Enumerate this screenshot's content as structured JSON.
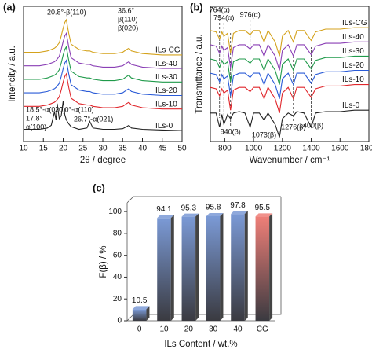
{
  "chart_data": [
    {
      "type": "line",
      "panel_label": "(a)",
      "x_label": "2θ / degree",
      "y_label": "Intencity / a.u.",
      "xlim": [
        10,
        50
      ],
      "xticks": [
        10,
        15,
        20,
        25,
        30,
        35,
        40,
        45,
        50
      ],
      "ylim": [
        0,
        10
      ],
      "x": [
        10,
        14,
        16,
        17,
        17.8,
        18.2,
        18.5,
        19,
        19.5,
        20,
        20.4,
        20.8,
        21.4,
        22,
        24,
        26,
        26.7,
        27.5,
        30,
        33,
        35,
        36,
        36.6,
        37.2,
        40,
        45,
        50
      ],
      "series": [
        {
          "name": "ILs-0",
          "color": "#222222",
          "values": [
            0.9,
            0.9,
            1.0,
            1.2,
            2.2,
            1.6,
            2.8,
            1.7,
            1.9,
            3.0,
            2.0,
            1.6,
            1.3,
            1.1,
            0.9,
            1.0,
            1.5,
            1.0,
            0.9,
            0.9,
            0.95,
            1.1,
            1.2,
            1.0,
            0.9,
            0.85,
            0.8
          ]
        },
        {
          "name": "ILs-10",
          "color": "#e0262b",
          "values": [
            2.6,
            2.6,
            2.7,
            2.8,
            2.9,
            3.0,
            3.1,
            3.3,
            3.8,
            4.4,
            4.8,
            5.0,
            4.0,
            3.2,
            2.8,
            2.7,
            2.7,
            2.6,
            2.5,
            2.5,
            2.6,
            2.8,
            2.9,
            2.7,
            2.5,
            2.4,
            2.4
          ]
        },
        {
          "name": "ILs-20",
          "color": "#2a5bd7",
          "values": [
            3.6,
            3.6,
            3.7,
            3.8,
            3.9,
            4.0,
            4.1,
            4.3,
            4.8,
            5.4,
            5.8,
            6.0,
            5.0,
            4.2,
            3.8,
            3.7,
            3.7,
            3.6,
            3.5,
            3.5,
            3.6,
            3.8,
            3.9,
            3.7,
            3.5,
            3.4,
            3.4
          ]
        },
        {
          "name": "ILs-30",
          "color": "#1f9a4a",
          "values": [
            4.6,
            4.6,
            4.7,
            4.8,
            4.9,
            5.0,
            5.1,
            5.3,
            5.8,
            6.4,
            6.8,
            7.0,
            6.0,
            5.2,
            4.8,
            4.7,
            4.7,
            4.6,
            4.5,
            4.5,
            4.6,
            4.8,
            4.9,
            4.7,
            4.5,
            4.4,
            4.4
          ]
        },
        {
          "name": "ILs-40",
          "color": "#8a3fb5",
          "values": [
            5.6,
            5.6,
            5.7,
            5.8,
            5.9,
            6.0,
            6.1,
            6.3,
            6.8,
            7.4,
            7.8,
            8.0,
            7.0,
            6.2,
            5.8,
            5.7,
            5.7,
            5.6,
            5.5,
            5.5,
            5.6,
            5.8,
            5.9,
            5.7,
            5.5,
            5.4,
            5.4
          ]
        },
        {
          "name": "ILs-CG",
          "color": "#d4a21c",
          "values": [
            6.6,
            6.6,
            6.7,
            6.8,
            6.9,
            7.0,
            7.1,
            7.3,
            7.8,
            8.4,
            8.8,
            9.0,
            8.0,
            7.2,
            6.8,
            6.7,
            6.7,
            6.6,
            6.5,
            6.5,
            6.6,
            6.8,
            6.9,
            6.7,
            6.5,
            6.4,
            6.4
          ]
        }
      ],
      "annotations": [
        {
          "text": "20.8°-β(110)"
        },
        {
          "text": "36.6°"
        },
        {
          "text": "β(110)"
        },
        {
          "text": "β(020)"
        },
        {
          "text": "18.5°-α(020)"
        },
        {
          "text": "17.8°"
        },
        {
          "text": "α(100)"
        },
        {
          "text": "20.0°-α(110)"
        },
        {
          "text": "26.7°-α(021)"
        }
      ]
    },
    {
      "type": "line",
      "panel_label": "(b)",
      "x_label": "Wavenumber / cm⁻¹",
      "y_label": "Transmittance / a.u.",
      "xlim": [
        700,
        1800
      ],
      "xticks": [
        800,
        1000,
        1200,
        1400,
        1600,
        1800
      ],
      "ylim": [
        0,
        9.5
      ],
      "x": [
        700,
        740,
        764,
        780,
        794,
        820,
        840,
        860,
        900,
        940,
        976,
        1000,
        1040,
        1073,
        1100,
        1150,
        1180,
        1200,
        1240,
        1276,
        1300,
        1350,
        1400,
        1430,
        1500,
        1600,
        1700,
        1800
      ],
      "series": [
        {
          "name": "ILs-0",
          "color": "#222222",
          "values": [
            2.0,
            2.0,
            1.0,
            1.9,
            1.2,
            1.9,
            1.6,
            2.0,
            2.1,
            2.0,
            1.0,
            2.0,
            2.0,
            1.5,
            2.0,
            1.2,
            0.3,
            1.6,
            2.0,
            1.8,
            2.1,
            2.0,
            1.0,
            2.0,
            2.1,
            2.1,
            2.2,
            2.2
          ]
        },
        {
          "name": "ILs-10",
          "color": "#e0262b",
          "values": [
            3.8,
            3.7,
            3.2,
            3.7,
            3.4,
            3.6,
            2.2,
            3.6,
            3.8,
            3.8,
            3.5,
            3.8,
            3.8,
            3.0,
            3.8,
            3.0,
            2.0,
            3.4,
            3.8,
            3.0,
            3.8,
            3.8,
            3.1,
            3.7,
            3.9,
            3.9,
            4.0,
            4.0
          ]
        },
        {
          "name": "ILs-20",
          "color": "#2a5bd7",
          "values": [
            4.8,
            4.7,
            4.2,
            4.7,
            4.4,
            4.6,
            3.2,
            4.6,
            4.8,
            4.8,
            4.5,
            4.8,
            4.8,
            4.0,
            4.8,
            4.0,
            3.0,
            4.4,
            4.8,
            4.0,
            4.8,
            4.8,
            4.1,
            4.7,
            4.9,
            4.9,
            5.0,
            5.0
          ]
        },
        {
          "name": "ILs-30",
          "color": "#1f9a4a",
          "values": [
            5.8,
            5.7,
            5.2,
            5.7,
            5.4,
            5.6,
            4.2,
            5.6,
            5.8,
            5.8,
            5.5,
            5.8,
            5.8,
            5.0,
            5.8,
            5.0,
            4.0,
            5.4,
            5.8,
            5.0,
            5.8,
            5.8,
            5.1,
            5.7,
            5.9,
            5.9,
            6.0,
            6.0
          ]
        },
        {
          "name": "ILs-40",
          "color": "#8a3fb5",
          "values": [
            6.8,
            6.7,
            6.2,
            6.7,
            6.4,
            6.6,
            5.2,
            6.6,
            6.8,
            6.8,
            6.5,
            6.8,
            6.8,
            6.0,
            6.8,
            6.0,
            5.0,
            6.4,
            6.8,
            6.0,
            6.8,
            6.8,
            6.1,
            6.7,
            6.9,
            6.9,
            7.0,
            7.0
          ]
        },
        {
          "name": "ILs-CG",
          "color": "#d4a21c",
          "values": [
            7.8,
            7.7,
            7.2,
            7.7,
            7.4,
            7.6,
            6.2,
            7.6,
            7.8,
            7.8,
            7.5,
            7.8,
            7.8,
            7.0,
            7.8,
            7.0,
            6.0,
            7.4,
            7.8,
            7.0,
            7.8,
            7.8,
            7.1,
            7.7,
            7.9,
            7.9,
            8.0,
            8.0
          ]
        }
      ],
      "annotations": [
        {
          "text": "764(α)",
          "x": 764
        },
        {
          "text": "794(α)",
          "x": 794
        },
        {
          "text": "976(α)",
          "x": 976
        },
        {
          "text": "840(β)",
          "x": 840
        },
        {
          "text": "1073(β)",
          "x": 1073
        },
        {
          "text": "1276(β)",
          "x": 1276
        },
        {
          "text": "1400(β)",
          "x": 1400
        }
      ]
    },
    {
      "type": "bar",
      "panel_label": "(c)",
      "x_label": "ILs Content / wt.%",
      "y_label": "F(β) / %",
      "categories": [
        "0",
        "10",
        "20",
        "30",
        "40",
        "CG"
      ],
      "values": [
        10.5,
        94.1,
        95.3,
        95.8,
        97.8,
        95.5
      ],
      "colors": [
        "#7b9ad6",
        "#7b9ad6",
        "#7b9ad6",
        "#7b9ad6",
        "#7b9ad6",
        "#ef7f78"
      ],
      "ylim": [
        0,
        108
      ],
      "yticks": [
        0,
        20,
        40,
        60,
        80,
        100
      ]
    }
  ]
}
